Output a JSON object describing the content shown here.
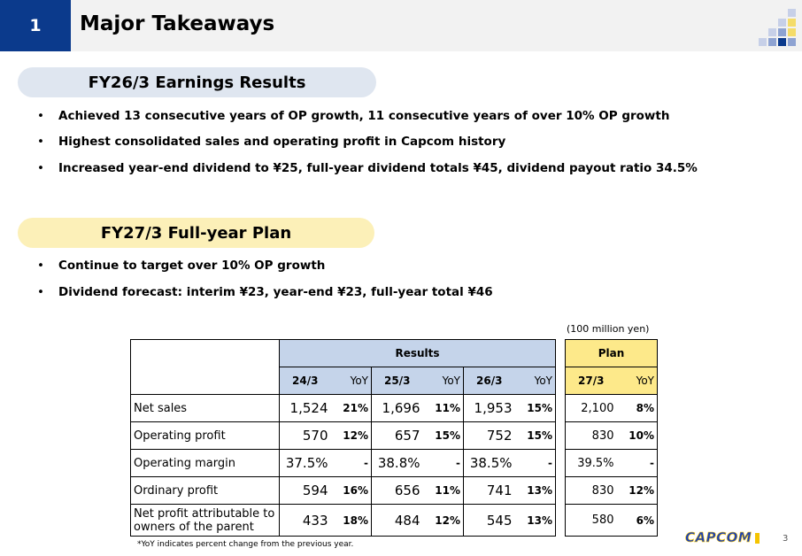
{
  "header": {
    "section_number": "1",
    "title": "Major Takeaways"
  },
  "colors": {
    "section_blue": "#0b3a8c",
    "pill_blue": "#dfe6f0",
    "pill_yellow": "#fcf0b8",
    "results_blue": "#c5d4ea",
    "plan_yellow": "#fde98a",
    "logo_blue": "#1a3fb5",
    "logo_yellow": "#f5c400"
  },
  "section1": {
    "title": "FY26/3 Earnings Results",
    "bullets": [
      "Achieved 13 consecutive years of OP growth, 11 consecutive years of over 10% OP growth",
      "Highest consolidated sales and operating profit in Capcom history",
      "Increased year-end dividend to ¥25, full-year dividend totals ¥45, dividend payout ratio 34.5%"
    ]
  },
  "section2": {
    "title": "FY27/3 Full-year Plan",
    "bullets": [
      "Continue to target over 10% OP growth",
      "Dividend forecast: interim ¥23, year-end ¥23, full-year total ¥46"
    ]
  },
  "table": {
    "unit": "(100 million yen)",
    "results_header": "Results",
    "plan_header": "Plan",
    "yoy_label": "YoY",
    "years": [
      "24/3",
      "25/3",
      "26/3",
      "27/3"
    ],
    "rows": [
      {
        "label": "Net sales",
        "cells": [
          [
            "1,524",
            "21%"
          ],
          [
            "1,696",
            "11%"
          ],
          [
            "1,953",
            "15%"
          ],
          [
            "2,100",
            "8%"
          ]
        ]
      },
      {
        "label": "Operating profit",
        "cells": [
          [
            "570",
            "12%"
          ],
          [
            "657",
            "15%"
          ],
          [
            "752",
            "15%"
          ],
          [
            "830",
            "10%"
          ]
        ]
      },
      {
        "label": "Operating margin",
        "cells": [
          [
            "37.5%",
            "-"
          ],
          [
            "38.8%",
            "-"
          ],
          [
            "38.5%",
            "-"
          ],
          [
            "39.5%",
            "-"
          ]
        ]
      },
      {
        "label": "Ordinary profit",
        "cells": [
          [
            "594",
            "16%"
          ],
          [
            "656",
            "11%"
          ],
          [
            "741",
            "13%"
          ],
          [
            "830",
            "12%"
          ]
        ]
      },
      {
        "label": "Net profit attributable to owners of the parent",
        "cells": [
          [
            "433",
            "18%"
          ],
          [
            "484",
            "12%"
          ],
          [
            "545",
            "13%"
          ],
          [
            "580",
            "6%"
          ]
        ]
      }
    ],
    "footnote": "*YoY indicates percent change from the previous year."
  },
  "footer": {
    "logo": "CAPCOM",
    "page_number": "3"
  }
}
